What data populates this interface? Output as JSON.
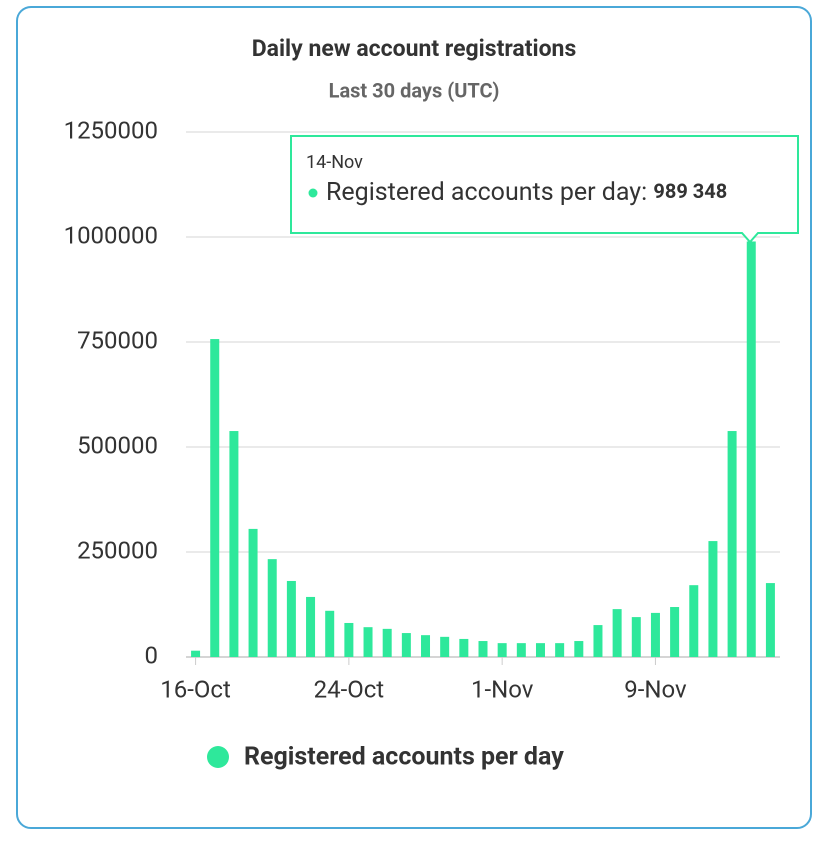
{
  "chart_data": {
    "type": "bar",
    "title": "Daily new account registrations",
    "subtitle": "Last 30 days (UTC)",
    "categories": [
      "16-Oct",
      null,
      null,
      null,
      null,
      null,
      null,
      null,
      "24-Oct",
      null,
      null,
      null,
      null,
      null,
      null,
      null,
      "1-Nov",
      null,
      null,
      null,
      null,
      null,
      null,
      null,
      "9-Nov",
      null,
      null,
      null,
      null,
      "14-Nov",
      null
    ],
    "series": [
      {
        "name": "Registered accounts per day",
        "color": "#2ee89b",
        "values": [
          15000,
          757000,
          538000,
          305000,
          233000,
          181000,
          143000,
          110000,
          81000,
          71000,
          67000,
          57000,
          52000,
          48000,
          43000,
          38000,
          33000,
          33000,
          33000,
          33000,
          38000,
          76000,
          114000,
          95000,
          105000,
          119000,
          171000,
          276000,
          538000,
          989348,
          176000
        ],
        "value_labels": [
          null,
          null,
          null,
          null,
          null,
          null,
          null,
          null,
          null,
          null,
          null,
          null,
          null,
          null,
          null,
          null,
          null,
          null,
          null,
          null,
          null,
          null,
          null,
          null,
          null,
          null,
          null,
          null,
          null,
          "989 348",
          null
        ]
      }
    ],
    "ylim": [
      0,
      1250000
    ],
    "yticks": [
      0,
      250000,
      500000,
      750000,
      1000000,
      1250000
    ],
    "grid": true,
    "legend": "bottom",
    "tooltip": {
      "label": "Registered accounts per day:"
    }
  }
}
